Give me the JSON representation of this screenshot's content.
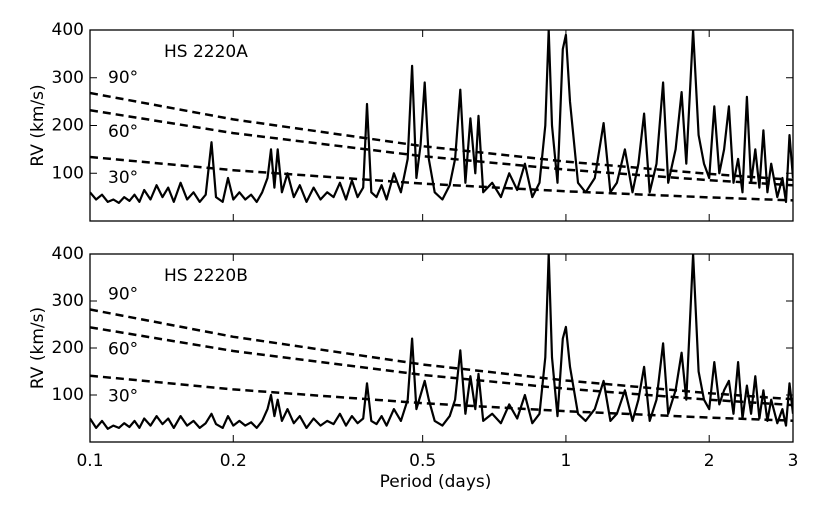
{
  "chart_data": [
    {
      "type": "line",
      "title": "HS 2220A",
      "ylabel": "RV (km/s)",
      "log_x": true,
      "xlim": [
        0.1,
        3
      ],
      "ylim": [
        0,
        400
      ],
      "xticks": [
        0.1,
        0.2,
        0.5,
        1,
        2,
        3
      ],
      "yticks": [
        100,
        200,
        300,
        400
      ],
      "color": "#000000",
      "x": [
        0.1,
        0.103,
        0.106,
        0.109,
        0.112,
        0.115,
        0.118,
        0.121,
        0.124,
        0.127,
        0.13,
        0.134,
        0.138,
        0.142,
        0.146,
        0.15,
        0.155,
        0.16,
        0.165,
        0.17,
        0.175,
        0.18,
        0.184,
        0.19,
        0.195,
        0.2,
        0.206,
        0.212,
        0.218,
        0.224,
        0.23,
        0.236,
        0.24,
        0.244,
        0.248,
        0.253,
        0.26,
        0.268,
        0.276,
        0.285,
        0.295,
        0.305,
        0.315,
        0.325,
        0.335,
        0.345,
        0.355,
        0.365,
        0.375,
        0.382,
        0.39,
        0.4,
        0.41,
        0.42,
        0.435,
        0.45,
        0.465,
        0.475,
        0.485,
        0.495,
        0.505,
        0.515,
        0.53,
        0.55,
        0.57,
        0.585,
        0.6,
        0.615,
        0.63,
        0.645,
        0.655,
        0.67,
        0.7,
        0.73,
        0.76,
        0.79,
        0.82,
        0.85,
        0.88,
        0.905,
        0.92,
        0.935,
        0.96,
        0.985,
        1.0,
        1.02,
        1.06,
        1.1,
        1.15,
        1.2,
        1.24,
        1.28,
        1.33,
        1.38,
        1.42,
        1.46,
        1.5,
        1.55,
        1.6,
        1.64,
        1.7,
        1.75,
        1.79,
        1.85,
        1.9,
        1.95,
        2.0,
        2.05,
        2.1,
        2.15,
        2.2,
        2.25,
        2.3,
        2.35,
        2.4,
        2.45,
        2.5,
        2.55,
        2.6,
        2.65,
        2.7,
        2.78,
        2.85,
        2.9,
        2.95,
        3.0
      ],
      "values": [
        60,
        45,
        55,
        40,
        45,
        38,
        50,
        42,
        55,
        40,
        65,
        45,
        75,
        50,
        70,
        40,
        80,
        45,
        60,
        40,
        55,
        165,
        50,
        40,
        90,
        45,
        60,
        45,
        55,
        40,
        60,
        90,
        150,
        70,
        150,
        60,
        100,
        50,
        75,
        40,
        70,
        45,
        60,
        50,
        80,
        45,
        85,
        50,
        70,
        245,
        60,
        50,
        75,
        45,
        100,
        60,
        130,
        325,
        90,
        160,
        290,
        130,
        60,
        45,
        75,
        130,
        275,
        80,
        215,
        100,
        220,
        60,
        80,
        50,
        100,
        65,
        120,
        50,
        80,
        200,
        400,
        200,
        80,
        360,
        390,
        250,
        80,
        60,
        90,
        205,
        60,
        80,
        150,
        60,
        120,
        225,
        60,
        120,
        290,
        80,
        150,
        270,
        120,
        400,
        180,
        120,
        90,
        240,
        100,
        150,
        240,
        80,
        130,
        60,
        260,
        80,
        150,
        70,
        190,
        60,
        120,
        50,
        90,
        40,
        180,
        90
      ],
      "curves": [
        {
          "label": "90°",
          "x": [
            0.1,
            0.2,
            0.5,
            1,
            2,
            3
          ],
          "values": [
            268,
            212.7,
            156.7,
            124.4,
            98.7,
            86
          ]
        },
        {
          "label": "60°",
          "x": [
            0.1,
            0.2,
            0.5,
            1,
            2,
            3
          ],
          "values": [
            232,
            184,
            135.7,
            107.7,
            85.5,
            74.7
          ]
        },
        {
          "label": "30°",
          "x": [
            0.1,
            0.2,
            0.5,
            1,
            2,
            3
          ],
          "values": [
            134,
            106.4,
            78.4,
            62.2,
            49.4,
            43.1
          ]
        }
      ]
    },
    {
      "type": "line",
      "title": "HS 2220B",
      "ylabel": "RV (km/s)",
      "xlabel": "Period (days)",
      "log_x": true,
      "xlim": [
        0.1,
        3
      ],
      "ylim": [
        0,
        400
      ],
      "xticks": [
        0.1,
        0.2,
        0.5,
        1,
        2,
        3
      ],
      "yticks": [
        100,
        200,
        300,
        400
      ],
      "color": "#000000",
      "x": [
        0.1,
        0.103,
        0.106,
        0.109,
        0.112,
        0.115,
        0.118,
        0.121,
        0.124,
        0.127,
        0.13,
        0.134,
        0.138,
        0.142,
        0.146,
        0.15,
        0.155,
        0.16,
        0.165,
        0.17,
        0.175,
        0.18,
        0.184,
        0.19,
        0.195,
        0.2,
        0.206,
        0.212,
        0.218,
        0.224,
        0.23,
        0.236,
        0.24,
        0.244,
        0.248,
        0.253,
        0.26,
        0.268,
        0.276,
        0.285,
        0.295,
        0.305,
        0.315,
        0.325,
        0.335,
        0.345,
        0.355,
        0.365,
        0.375,
        0.382,
        0.39,
        0.4,
        0.41,
        0.42,
        0.435,
        0.45,
        0.465,
        0.475,
        0.485,
        0.495,
        0.505,
        0.515,
        0.53,
        0.55,
        0.57,
        0.585,
        0.6,
        0.615,
        0.63,
        0.645,
        0.655,
        0.67,
        0.7,
        0.73,
        0.76,
        0.79,
        0.82,
        0.85,
        0.88,
        0.905,
        0.92,
        0.935,
        0.96,
        0.985,
        1.0,
        1.02,
        1.06,
        1.1,
        1.15,
        1.2,
        1.24,
        1.28,
        1.33,
        1.38,
        1.42,
        1.46,
        1.5,
        1.55,
        1.6,
        1.64,
        1.7,
        1.75,
        1.79,
        1.85,
        1.9,
        1.95,
        2.0,
        2.05,
        2.1,
        2.15,
        2.2,
        2.25,
        2.3,
        2.35,
        2.4,
        2.45,
        2.5,
        2.55,
        2.6,
        2.65,
        2.7,
        2.78,
        2.85,
        2.9,
        2.95,
        3.0
      ],
      "values": [
        50,
        30,
        45,
        28,
        35,
        30,
        40,
        32,
        45,
        30,
        50,
        35,
        55,
        38,
        50,
        30,
        55,
        35,
        45,
        30,
        40,
        60,
        38,
        30,
        55,
        35,
        45,
        35,
        42,
        30,
        45,
        70,
        100,
        55,
        90,
        45,
        70,
        40,
        55,
        30,
        50,
        35,
        45,
        38,
        60,
        35,
        55,
        40,
        50,
        125,
        45,
        38,
        55,
        35,
        70,
        45,
        90,
        220,
        70,
        100,
        130,
        90,
        45,
        35,
        55,
        90,
        195,
        60,
        140,
        70,
        145,
        45,
        60,
        40,
        80,
        50,
        100,
        40,
        60,
        180,
        400,
        180,
        55,
        220,
        245,
        160,
        60,
        45,
        70,
        130,
        45,
        60,
        110,
        45,
        90,
        160,
        45,
        90,
        210,
        60,
        110,
        190,
        90,
        400,
        150,
        90,
        70,
        170,
        80,
        110,
        130,
        60,
        170,
        50,
        120,
        60,
        140,
        50,
        110,
        45,
        90,
        40,
        70,
        35,
        125,
        60
      ],
      "curves": [
        {
          "label": "90°",
          "x": [
            0.1,
            0.2,
            0.5,
            1,
            2,
            3
          ],
          "values": [
            282,
            223.8,
            164.9,
            130.9,
            103.9,
            90.8
          ]
        },
        {
          "label": "60°",
          "x": [
            0.1,
            0.2,
            0.5,
            1,
            2,
            3
          ],
          "values": [
            244,
            193.7,
            142.7,
            113.3,
            89.9,
            78.6
          ]
        },
        {
          "label": "30°",
          "x": [
            0.1,
            0.2,
            0.5,
            1,
            2,
            3
          ],
          "values": [
            141,
            111.9,
            82.5,
            65.5,
            52,
            45.4
          ]
        }
      ]
    }
  ]
}
